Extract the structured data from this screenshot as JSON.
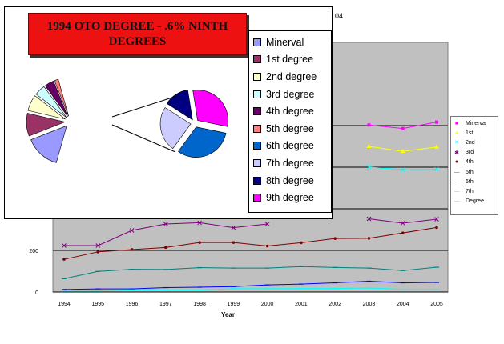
{
  "chart_data": [
    {
      "type": "line",
      "title": "",
      "partial_title": "04",
      "xlabel": "Year",
      "ylabel": "",
      "x": [
        "1994",
        "1995",
        "1996",
        "1997",
        "1998",
        "1999",
        "2000",
        "2001",
        "2002",
        "2003",
        "2004",
        "2005"
      ],
      "ylim": [
        0,
        1000
      ],
      "y_ticks": [
        "0",
        "200"
      ],
      "gridlines": [
        0,
        200,
        400,
        600,
        800
      ],
      "grid": true,
      "plot_area_color": "#c0c0c0",
      "legend_position": "right",
      "series": [
        {
          "name": "Minerval",
          "legend_label": "Minerval",
          "color": "#ff00ff",
          "marker": "square",
          "values": [
            null,
            null,
            null,
            null,
            null,
            null,
            null,
            null,
            null,
            803,
            786,
            817
          ]
        },
        {
          "name": "1st",
          "legend_label": "1st",
          "color": "#ffff00",
          "marker": "triangle",
          "values": [
            null,
            null,
            null,
            null,
            null,
            null,
            null,
            null,
            null,
            700,
            676,
            697
          ]
        },
        {
          "name": "2nd",
          "legend_label": "2nd",
          "color": "#00ffff",
          "marker": "x",
          "values": [
            null,
            null,
            null,
            null,
            null,
            null,
            null,
            null,
            null,
            600,
            589,
            590
          ]
        },
        {
          "name": "3rd",
          "legend_label": "3rd",
          "color": "#800080",
          "marker": "star",
          "values": [
            223,
            223,
            296,
            327,
            333,
            309,
            327,
            null,
            null,
            352,
            331,
            350
          ]
        },
        {
          "name": "4th",
          "legend_label": "4th",
          "color": "#800000",
          "marker": "dot",
          "values": [
            157,
            193,
            204,
            214,
            238,
            238,
            221,
            237,
            257,
            258,
            284,
            310
          ]
        },
        {
          "name": "5th",
          "legend_label": "5th",
          "color": "#008080",
          "marker": "dash",
          "values": [
            64,
            99,
            109,
            108,
            117,
            115,
            115,
            122,
            118,
            115,
            103,
            119
          ]
        },
        {
          "name": "6th",
          "legend_label": "6th",
          "color": "#0000ff",
          "marker": "dash",
          "values": [
            12,
            15,
            15,
            21,
            23,
            26,
            34,
            38,
            44,
            52,
            44,
            46
          ]
        },
        {
          "name": "7th",
          "legend_label": "7th",
          "color": "#00ffff",
          "marker": "dash",
          "values": [
            5,
            5,
            10,
            10,
            10,
            16,
            16,
            17,
            17,
            19,
            13,
            13
          ]
        }
      ],
      "legend_extra": [
        "Degree"
      ]
    },
    {
      "type": "pie",
      "title": "1994 OTO DEGREE - .6% NINTH DEGREES",
      "style": "bar-of-pie, exploded",
      "legend_position": "right",
      "main_pie_categories": [
        "Minerval",
        "1st degree",
        "2nd degree",
        "3rd degree",
        "4th degree",
        "5th degree"
      ],
      "main_pie_values": [
        26,
        17,
        12,
        8,
        7,
        3
      ],
      "main_pie_colors": [
        "#9999ff",
        "#993366",
        "#ffffcc",
        "#ccffff",
        "#660066",
        "#ff8080"
      ],
      "sub_pie_categories": [
        "6th degree",
        "7th degree",
        "8th degree",
        "9th degree"
      ],
      "sub_pie_values": [
        33,
        25,
        14,
        32
      ],
      "sub_pie_colors": [
        "#0066cc",
        "#ccccff",
        "#000080",
        "#ff00ff"
      ],
      "legend": [
        {
          "label": "Minerval",
          "color": "#9999ff"
        },
        {
          "label": "1st degree",
          "color": "#993366"
        },
        {
          "label": "2nd degree",
          "color": "#ffffcc"
        },
        {
          "label": "3rd degree",
          "color": "#ccffff"
        },
        {
          "label": "4th degree",
          "color": "#660066"
        },
        {
          "label": "5th degree",
          "color": "#ff8080"
        },
        {
          "label": "6th degree",
          "color": "#0066cc"
        },
        {
          "label": "7th degree",
          "color": "#ccccff"
        },
        {
          "label": "8th degree",
          "color": "#000080"
        },
        {
          "label": "9th degree",
          "color": "#ff00ff"
        }
      ]
    }
  ]
}
